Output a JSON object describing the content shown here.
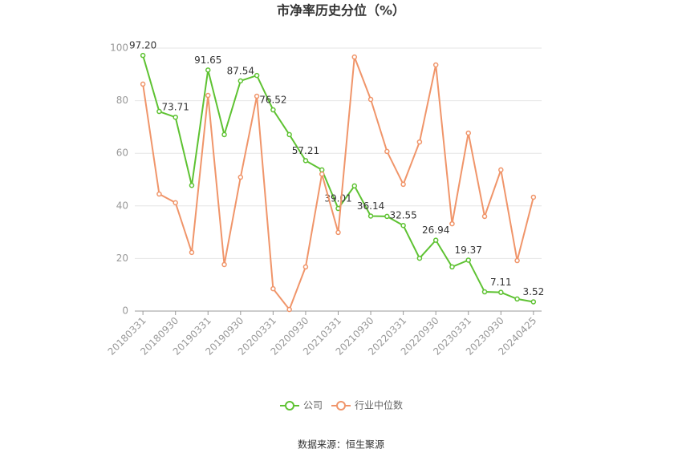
{
  "chart_data": {
    "type": "line",
    "title": "市净率历史分位（%）",
    "source": "数据来源：恒生聚源",
    "categories": [
      "20180331",
      null,
      "20180930",
      null,
      "20190331",
      null,
      "20190930",
      null,
      "20200331",
      null,
      "20200930",
      null,
      "20210331",
      null,
      "20210930",
      null,
      "20220331",
      null,
      "20220930",
      null,
      "20230331",
      null,
      "20230930",
      null,
      "20240425"
    ],
    "series": [
      {
        "name": "公司",
        "color": "#5ec232",
        "values": [
          97.2,
          75.9,
          73.71,
          47.8,
          91.65,
          67.1,
          87.54,
          89.6,
          76.52,
          67.1,
          57.21,
          53.7,
          39.01,
          47.6,
          36.14,
          36.0,
          32.55,
          20.1,
          26.94,
          16.8,
          19.37,
          7.3,
          7.11,
          4.6,
          3.52
        ],
        "value_labels": [
          "97.20",
          null,
          "73.71",
          null,
          "91.65",
          null,
          "87.54",
          null,
          "76.52",
          null,
          "57.21",
          null,
          "39.01",
          null,
          "36.14",
          null,
          "32.55",
          null,
          "26.94",
          null,
          "19.37",
          null,
          "7.11",
          null,
          "3.52"
        ]
      },
      {
        "name": "行业中位数",
        "color": "#f0956a",
        "values": [
          86.3,
          44.5,
          41.2,
          22.3,
          82.0,
          17.7,
          50.9,
          81.7,
          8.5,
          0.6,
          16.8,
          52.1,
          29.9,
          96.6,
          80.5,
          60.7,
          48.2,
          64.3,
          93.6,
          33.2,
          67.7,
          36.0,
          53.7,
          19.2,
          43.3
        ]
      }
    ],
    "ylim": [
      0,
      100
    ],
    "yticks": [
      0,
      20,
      40,
      60,
      80,
      100
    ],
    "grid": true
  }
}
